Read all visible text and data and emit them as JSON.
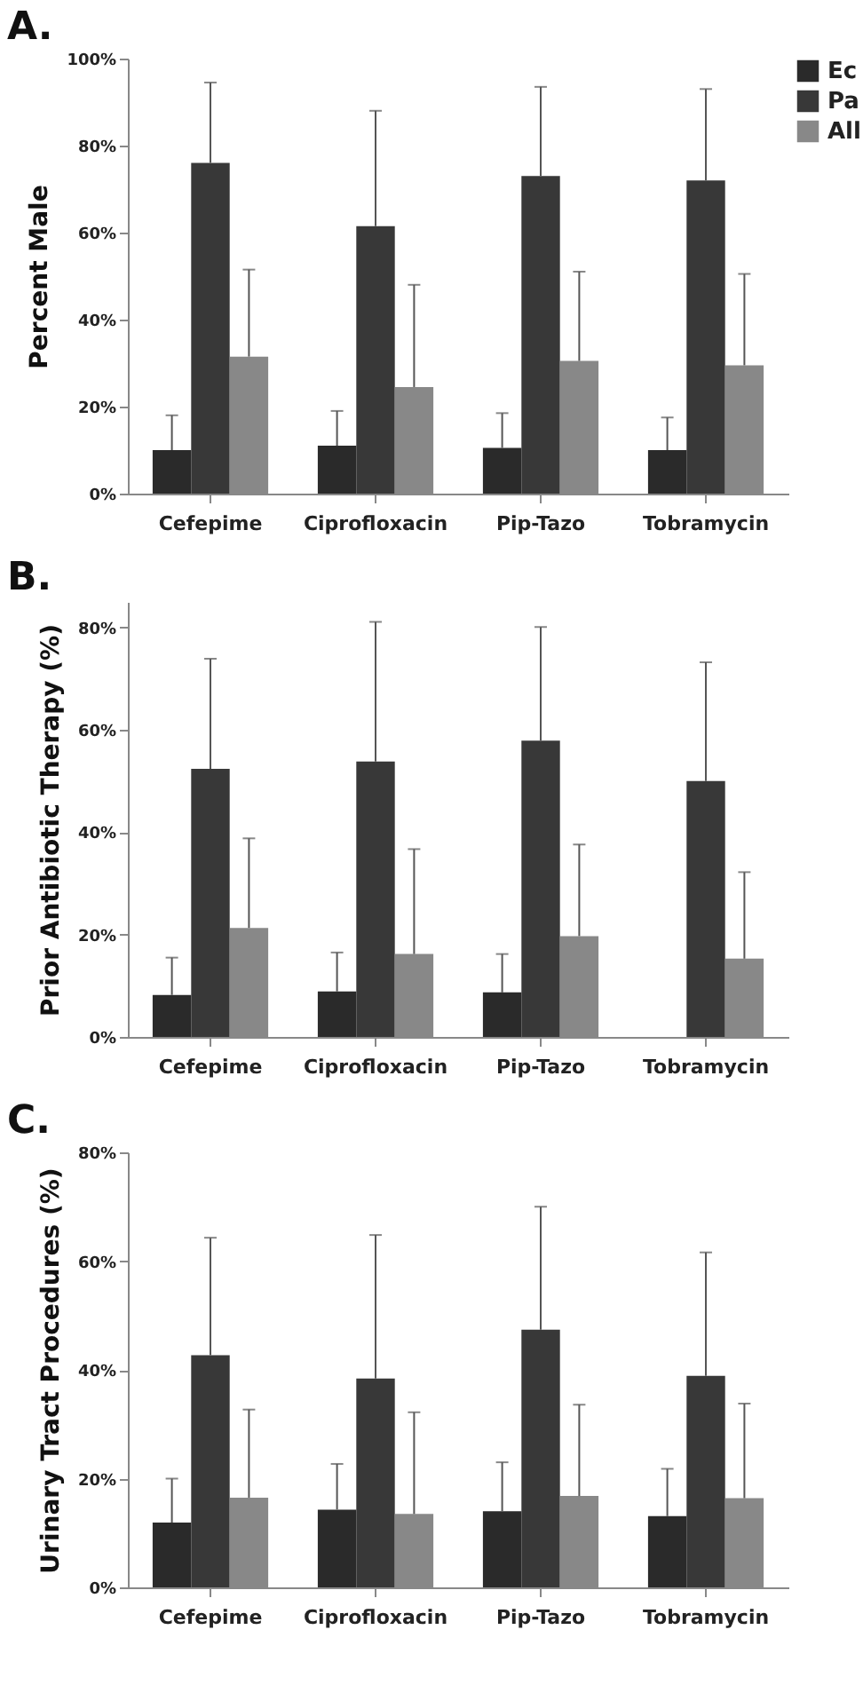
{
  "chart_data": [
    {
      "type": "bar",
      "title": "A.",
      "ylabel": "Percent Male",
      "categories": [
        "Cefepime",
        "Ciprofloxacin",
        "Pip-Tazo",
        "Tobramycin"
      ],
      "legend": "top right",
      "ylim": [
        0,
        100
      ],
      "yticks": [
        {
          "value": 0,
          "label": "0%"
        },
        {
          "value": 20,
          "label": "20%"
        },
        {
          "value": 40,
          "label": "40%"
        },
        {
          "value": 60,
          "label": "60%"
        },
        {
          "value": 80,
          "label": "80%"
        },
        {
          "value": 100,
          "label": "100%"
        }
      ],
      "series": [
        {
          "name": "Ec",
          "color": "#2a2a2a",
          "values": [
            10,
            11,
            10.5,
            10
          ],
          "errors": [
            [
              10,
              18
            ],
            [
              11,
              19
            ],
            [
              10.5,
              18.5
            ],
            [
              10,
              17.5
            ]
          ]
        },
        {
          "name": "Pa",
          "color": "#383838",
          "values": [
            76,
            61.5,
            73,
            72
          ],
          "errors": [
            [
              76,
              94.5
            ],
            [
              61.5,
              88
            ],
            [
              73,
              93.5
            ],
            [
              72,
              93
            ]
          ]
        },
        {
          "name": "All",
          "color": "#888888",
          "values": [
            31.5,
            24.5,
            30.5,
            29.5
          ],
          "errors": [
            [
              31.5,
              51.5
            ],
            [
              24.5,
              48
            ],
            [
              30.5,
              51
            ],
            [
              29.5,
              50.5
            ]
          ]
        }
      ]
    },
    {
      "type": "bar",
      "title": "B.",
      "ylabel": "Prior Antibiotic Therapy (%)",
      "categories": [
        "Cefepime",
        "Ciprofloxacin",
        "Pip-Tazo",
        "Tobramycin"
      ],
      "legend": "top right",
      "ylim": [
        0,
        85
      ],
      "yticks": [
        {
          "value": 0,
          "label": "0%"
        },
        {
          "value": 20,
          "label": "20%"
        },
        {
          "value": 40,
          "label": "40%"
        },
        {
          "value": 60,
          "label": "60%"
        },
        {
          "value": 80,
          "label": "80%"
        }
      ],
      "series": [
        {
          "name": "Ec",
          "color": "#2a2a2a",
          "values": [
            8.2,
            8.9,
            8.7,
            0
          ],
          "errors": [
            [
              8.2,
              15.5
            ],
            [
              8.9,
              16.5
            ],
            [
              8.7,
              16.2
            ],
            null
          ]
        },
        {
          "name": "Pa",
          "color": "#383838",
          "values": [
            52.4,
            53.8,
            57.9,
            50
          ],
          "errors": [
            [
              52.4,
              73.9
            ],
            [
              53.8,
              81.1
            ],
            [
              57.9,
              80.1
            ],
            [
              50,
              73.2
            ]
          ]
        },
        {
          "name": "All",
          "color": "#888888",
          "values": [
            21.3,
            16.2,
            19.7,
            15.3
          ],
          "errors": [
            [
              21.3,
              38.8
            ],
            [
              16.2,
              36.7
            ],
            [
              19.7,
              37.6
            ],
            [
              15.3,
              32.2
            ]
          ]
        }
      ]
    },
    {
      "type": "bar",
      "title": "C.",
      "ylabel": "Urinary Tract Procedures (%)",
      "categories": [
        "Cefepime",
        "Ciprofloxacin",
        "Pip-Tazo",
        "Tobramycin"
      ],
      "legend": "top right",
      "ylim": [
        0,
        80
      ],
      "yticks": [
        {
          "value": 0,
          "label": "0%"
        },
        {
          "value": 20,
          "label": "20%"
        },
        {
          "value": 40,
          "label": "40%"
        },
        {
          "value": 60,
          "label": "60%"
        },
        {
          "value": 80,
          "label": "80%"
        }
      ],
      "series": [
        {
          "name": "Ec",
          "color": "#2a2a2a",
          "values": [
            11.9,
            14.3,
            14,
            13.1
          ],
          "errors": [
            [
              11.9,
              20
            ],
            [
              14.3,
              22.7
            ],
            [
              14,
              23
            ],
            [
              13.1,
              21.8
            ]
          ]
        },
        {
          "name": "Pa",
          "color": "#383838",
          "values": [
            42.7,
            38.4,
            47.4,
            38.9
          ],
          "errors": [
            [
              42.7,
              64.3
            ],
            [
              38.4,
              64.8
            ],
            [
              47.4,
              70
            ],
            [
              38.9,
              61.6
            ]
          ]
        },
        {
          "name": "All",
          "color": "#888888",
          "values": [
            16.5,
            13.5,
            16.8,
            16.4
          ],
          "errors": [
            [
              16.5,
              32.7
            ],
            [
              13.5,
              32.2
            ],
            [
              16.8,
              33.6
            ],
            [
              16.4,
              33.8
            ]
          ]
        }
      ]
    }
  ]
}
